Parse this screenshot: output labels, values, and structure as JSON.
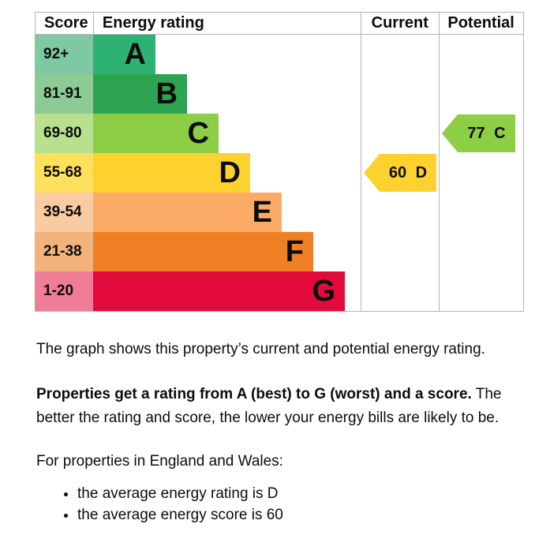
{
  "chart_data": {
    "type": "bar",
    "title": "Energy rating",
    "columns": [
      "Score",
      "Energy rating",
      "Current",
      "Potential"
    ],
    "bands": [
      {
        "letter": "A",
        "score_range": "92+",
        "color": "#2eb274",
        "score_bg": "#7ec8a4"
      },
      {
        "letter": "B",
        "score_range": "81-91",
        "color": "#2ea452",
        "score_bg": "#8ccb96"
      },
      {
        "letter": "C",
        "score_range": "69-80",
        "color": "#8dce46",
        "score_bg": "#b9e08e"
      },
      {
        "letter": "D",
        "score_range": "55-68",
        "color": "#fdd22e",
        "score_bg": "#ffe05c"
      },
      {
        "letter": "E",
        "score_range": "39-54",
        "color": "#fbab66",
        "score_bg": "#f9cba1"
      },
      {
        "letter": "F",
        "score_range": "21-38",
        "color": "#ef8023",
        "score_bg": "#f2b27c"
      },
      {
        "letter": "G",
        "score_range": "1-20",
        "color": "#e30b3c",
        "score_bg": "#ef7d98"
      }
    ],
    "current": {
      "score": 60,
      "band": "D",
      "label": "60 D",
      "color": "#fdd22e"
    },
    "potential": {
      "score": 77,
      "band": "C",
      "label": "77 C",
      "color": "#8dce46"
    },
    "headers": {
      "score": "Score",
      "energy_rating": "Energy rating",
      "current": "Current",
      "potential": "Potential"
    },
    "grid_color": "#b1b4b6"
  },
  "text": {
    "para_intro": "The graph shows this property’s current and potential energy rating.",
    "para_rating_bold": "Properties get a rating from A (best) to G (worst) and a score.",
    "para_rating_rest": " The better the rating and score, the lower your energy bills are likely to be.",
    "para_regions": "For properties in England and Wales:",
    "bullets": [
      "the average energy rating is D",
      "the average energy score is 60"
    ]
  }
}
